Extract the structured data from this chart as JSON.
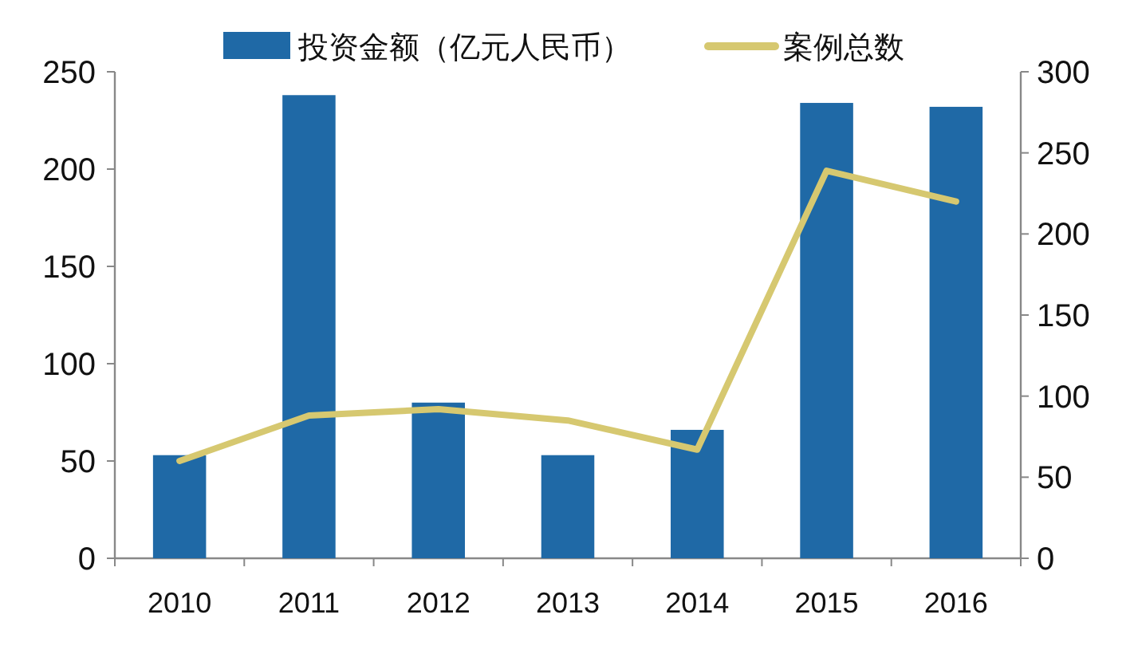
{
  "chart_data": {
    "type": "bar",
    "categories": [
      "2010",
      "2011",
      "2012",
      "2013",
      "2014",
      "2015",
      "2016"
    ],
    "series": [
      {
        "name": "投资金额（亿元人民币）",
        "color": "#1f69a6",
        "values": [
          53,
          238,
          80,
          53,
          66,
          234,
          232
        ]
      },
      {
        "name": "案例总数",
        "type": "line",
        "axis": "y2",
        "color": "#d6c870",
        "values": [
          60,
          88,
          92,
          85,
          67,
          239,
          220
        ]
      }
    ],
    "ylim": [
      0,
      250
    ],
    "yticks": [
      0,
      50,
      100,
      150,
      200,
      250
    ],
    "y2lim": [
      0,
      300
    ],
    "y2ticks": [
      0,
      50,
      100,
      150,
      200,
      250,
      300
    ],
    "grid": false,
    "legend": "top",
    "marker": "none",
    "line_style": "solid"
  }
}
